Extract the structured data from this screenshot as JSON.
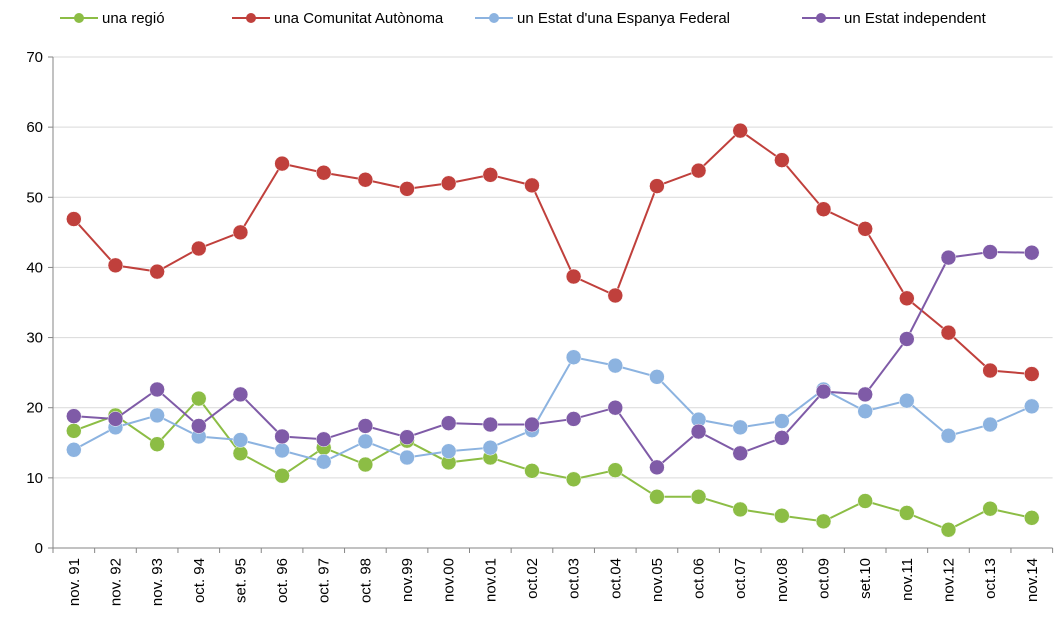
{
  "chart_data": {
    "type": "line",
    "categories": [
      "nov. 91",
      "nov. 92",
      "nov. 93",
      "oct. 94",
      "set. 95",
      "oct. 96",
      "oct. 97",
      "oct. 98",
      "nov.99",
      "nov.00",
      "nov.01",
      "oct.02",
      "oct.03",
      "oct.04",
      "nov.05",
      "oct.06",
      "oct.07",
      "nov.08",
      "oct.09",
      "set.10",
      "nov.11",
      "nov.12",
      "oct.13",
      "nov.14"
    ],
    "series": [
      {
        "name": "una regió",
        "color": "#8cbd45",
        "values": [
          16.7,
          18.9,
          14.8,
          21.3,
          13.5,
          10.3,
          14.3,
          11.9,
          15.3,
          12.2,
          12.9,
          11.0,
          9.8,
          11.1,
          7.3,
          7.3,
          5.5,
          4.6,
          3.8,
          6.7,
          5.0,
          2.6,
          5.6,
          4.3
        ]
      },
      {
        "name": "una Comunitat Autònoma",
        "color": "#c0403c",
        "values": [
          46.9,
          40.3,
          39.4,
          42.7,
          45.0,
          54.8,
          53.5,
          52.5,
          51.2,
          52.0,
          53.2,
          51.7,
          38.7,
          36.0,
          51.6,
          53.8,
          59.5,
          55.3,
          48.3,
          45.5,
          35.6,
          30.7,
          25.3,
          24.8
        ]
      },
      {
        "name": "un Estat d'una Espanya Federal",
        "color": "#8cb3e0",
        "values": [
          14.0,
          17.2,
          18.9,
          15.9,
          15.4,
          13.9,
          12.3,
          15.2,
          12.9,
          13.8,
          14.3,
          16.8,
          27.2,
          26.0,
          24.4,
          18.3,
          17.2,
          18.1,
          22.6,
          19.5,
          21.0,
          16.0,
          17.6,
          20.2
        ]
      },
      {
        "name": "un Estat independent",
        "color": "#7f5ba7",
        "values": [
          18.8,
          18.4,
          22.6,
          17.4,
          21.9,
          15.9,
          15.5,
          17.4,
          15.8,
          17.8,
          17.6,
          17.6,
          18.4,
          20.0,
          11.5,
          16.6,
          13.5,
          15.7,
          22.3,
          21.9,
          29.8,
          41.4,
          42.2,
          42.1
        ]
      }
    ],
    "ylim": [
      0,
      70
    ],
    "yticks": [
      0,
      10,
      20,
      30,
      40,
      50,
      60,
      70
    ],
    "grid": true,
    "legend": "top"
  }
}
